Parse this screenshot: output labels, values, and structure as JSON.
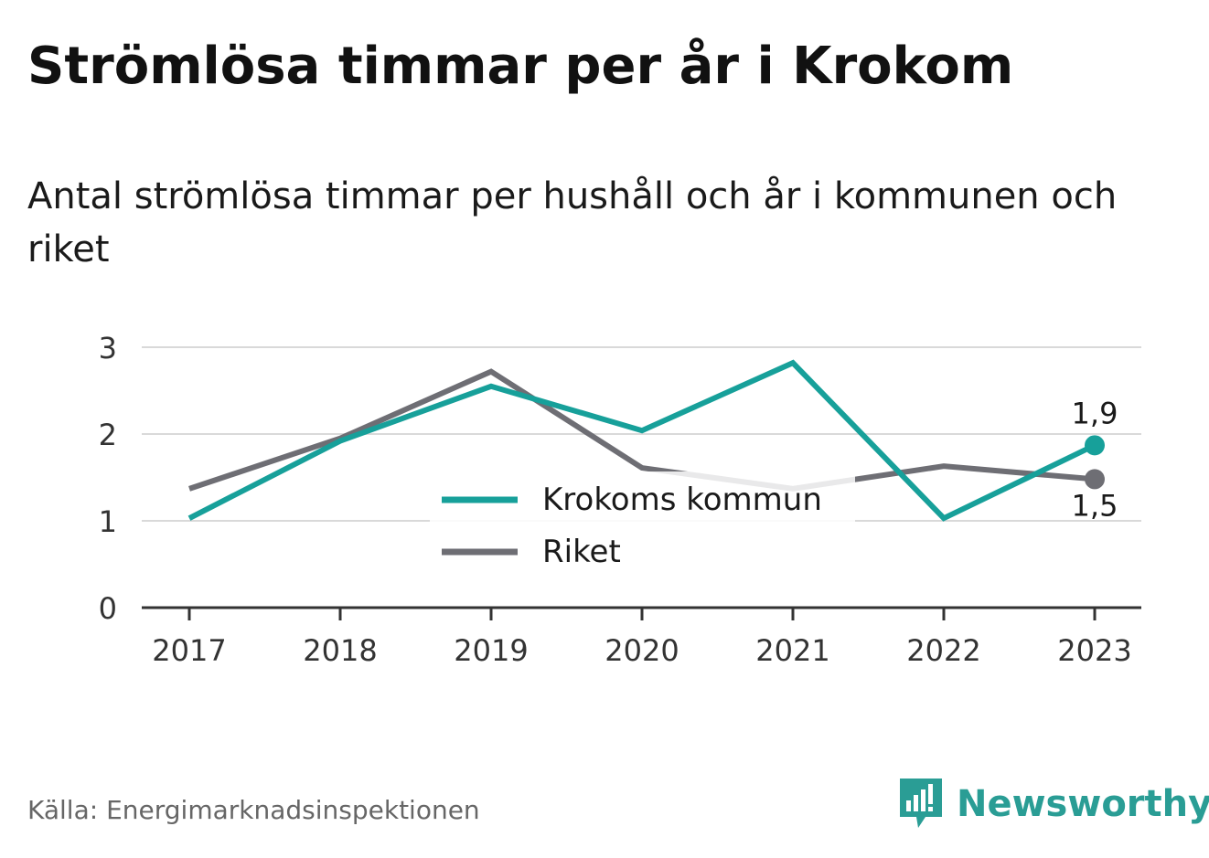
{
  "title": "Strömlösa timmar per år i Krokom",
  "subtitle": "Antal strömlösa timmar per hushåll och år i kommunen och riket",
  "source": "Källa: Energimarknadsinspektionen",
  "brand": {
    "name": "Newsworthy",
    "color": "#2a9d95",
    "icon": "newsworthy-logo-icon"
  },
  "chart_data": {
    "type": "line",
    "title": "",
    "xlabel": "",
    "ylabel": "",
    "x": [
      "2017",
      "2018",
      "2019",
      "2020",
      "2021",
      "2022",
      "2023"
    ],
    "ylim": [
      0,
      3
    ],
    "yticks": [
      "0",
      "1",
      "2",
      "3"
    ],
    "grid": true,
    "legend_position": "center",
    "series": [
      {
        "name": "Krokoms kommun",
        "color": "#17a09a",
        "values": [
          1.03,
          1.92,
          2.55,
          2.04,
          2.82,
          1.03,
          1.87
        ],
        "end_label": "1,9"
      },
      {
        "name": "Riket",
        "color": "#6e6e74",
        "values": [
          1.37,
          1.95,
          2.72,
          1.61,
          1.37,
          1.63,
          1.48
        ],
        "end_label": "1,5"
      }
    ]
  }
}
